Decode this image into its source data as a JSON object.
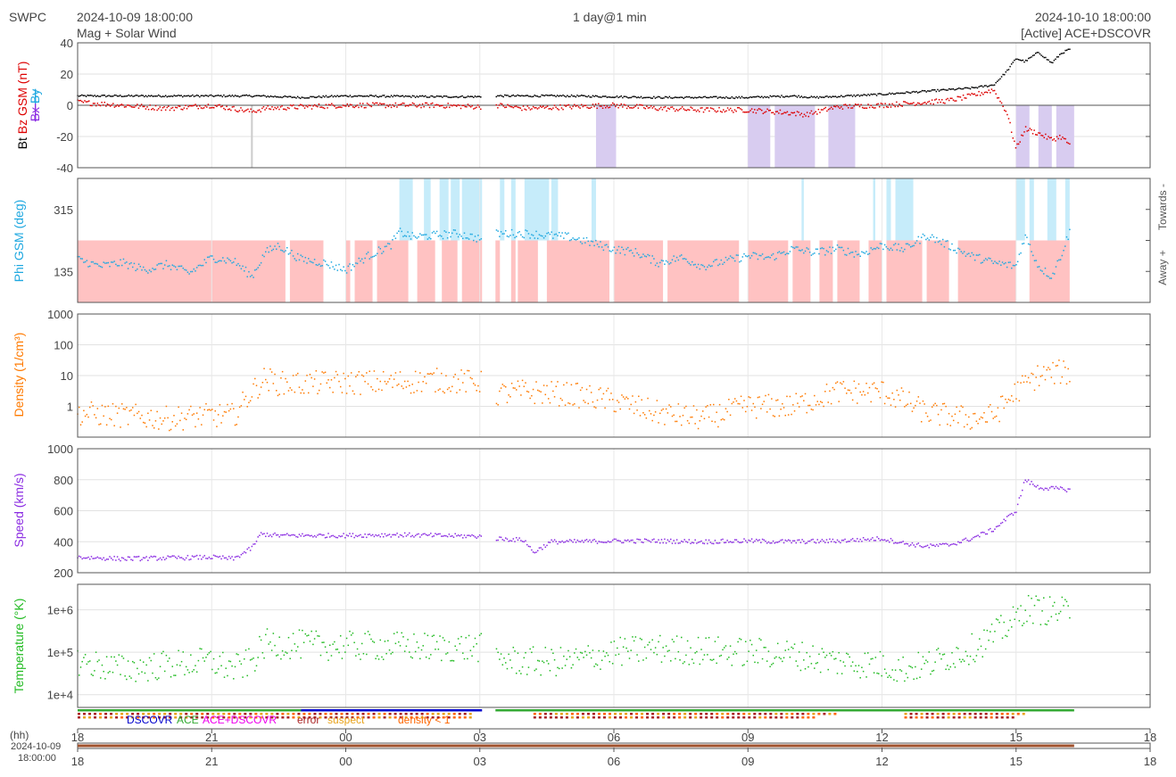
{
  "header": {
    "brand": "SWPC",
    "start_time": "2024-10-09 18:00:00",
    "subtitle": "Mag + Solar Wind",
    "span": "1 day@1 min",
    "end_time": "2024-10-10 18:00:00",
    "source": "[Active] ACE+DSCOVR"
  },
  "colors": {
    "bt": "#000000",
    "bz": "#dd0000",
    "by": "#1fa8e0",
    "bx": "#8a2be2",
    "phi": "#1fa8e0",
    "density": "#ff7a00",
    "speed": "#8a2be2",
    "temperature": "#22bb22",
    "away_fill": "#ffc2c2",
    "towards_fill": "#c6ecfa",
    "bz_south_fill": "#d8ccf0",
    "dscovr": "#0000cc",
    "ace": "#33aa33",
    "ace_dscovr": "#ee00ee",
    "error": "#aa2222",
    "suspect": "#e8a21a",
    "density_lt1": "#ff6600"
  },
  "legend": {
    "dscovr": "DSCOVR",
    "ace": "ACE",
    "ace_dscovr": "ACE+DSCOVR",
    "error": "error",
    "suspect": "suspect",
    "density_lt1": "density < 1"
  },
  "timeline": {
    "hh_label": "(hh)",
    "date_label": "2024-10-09",
    "time_label": "18:00:00"
  },
  "chart_data": [
    {
      "type": "scatter",
      "name": "mag",
      "ylabel_parts": [
        "Bt",
        "Bz GSM (nT)",
        "Bx",
        "By"
      ],
      "ylim": [
        -40,
        40
      ],
      "yticks": [
        40,
        20,
        0,
        -20,
        -40
      ],
      "x_ticks": [
        "18",
        "21",
        "00",
        "03",
        "06",
        "09",
        "12",
        "15",
        "18"
      ],
      "x_range_hours": [
        0,
        24
      ],
      "gap_hours": [
        9.05,
        9.35
      ],
      "series": [
        {
          "name": "Bt",
          "x": [
            0,
            2,
            4,
            5,
            6,
            8,
            9,
            9.4,
            11,
            13,
            15,
            16,
            16.5,
            18,
            18.5,
            19,
            19.5,
            20,
            20.5,
            20.8,
            21,
            21.2,
            21.5,
            21.8,
            22,
            22.2
          ],
          "y": [
            6,
            6,
            6,
            5,
            6,
            5.5,
            5.5,
            6,
            6,
            5,
            5,
            6,
            5,
            7,
            8,
            9,
            10,
            11,
            13,
            22,
            30,
            28,
            34,
            27,
            33,
            36
          ]
        },
        {
          "name": "Bz",
          "x": [
            0,
            1,
            2,
            3,
            3.9,
            4.2,
            5,
            6,
            8,
            9,
            9.4,
            10,
            11,
            12,
            13,
            14,
            15,
            16,
            16.3,
            17,
            18,
            19,
            19.5,
            20,
            20.5,
            20.8,
            21,
            21.2,
            21.5,
            21.8,
            22,
            22.2
          ],
          "y": [
            2,
            0,
            -2,
            0,
            -4,
            -2,
            -1,
            0,
            0,
            -1,
            0,
            -2,
            -1,
            0,
            -2,
            -3,
            -3,
            -5,
            -6,
            -1,
            0,
            2,
            3,
            6,
            10,
            -5,
            -28,
            -15,
            -18,
            -22,
            -20,
            -25
          ]
        }
      ]
    },
    {
      "type": "scatter",
      "name": "phi",
      "ylabel": "Phi GSM (deg)",
      "ylim": [
        45,
        405
      ],
      "yticks": [
        315,
        135
      ],
      "side_labels": [
        "Away +",
        "Towards -"
      ],
      "series": [
        {
          "name": "Phi",
          "x": [
            0,
            0.5,
            1,
            1.5,
            2,
            2.5,
            3,
            3.5,
            3.9,
            4.2,
            4.5,
            5,
            5.5,
            6,
            6.5,
            7,
            7.2,
            7.5,
            8,
            8.5,
            9,
            9.4,
            10,
            10.5,
            11,
            12,
            12.5,
            13,
            13.5,
            14,
            14.5,
            15,
            15.5,
            16,
            16.5,
            17,
            17.5,
            18,
            18.5,
            19,
            19.5,
            20,
            20.5,
            21,
            21.2,
            21.5,
            21.8,
            22,
            22.2
          ],
          "y": [
            170,
            150,
            160,
            140,
            155,
            130,
            175,
            165,
            120,
            190,
            210,
            170,
            160,
            140,
            180,
            210,
            250,
            235,
            240,
            245,
            230,
            245,
            245,
            240,
            235,
            200,
            190,
            160,
            175,
            150,
            165,
            180,
            175,
            200,
            190,
            200,
            185,
            210,
            200,
            240,
            210,
            180,
            160,
            150,
            240,
            150,
            120,
            180,
            250
          ]
        }
      ]
    },
    {
      "type": "scatter",
      "name": "density",
      "ylabel": "Density (1/cm³)",
      "ylim": [
        0.1,
        1000
      ],
      "scale": "log",
      "yticks": [
        1000,
        100,
        10,
        1
      ],
      "series": [
        {
          "name": "Density",
          "x": [
            0,
            1,
            2,
            3,
            3.5,
            3.9,
            4.2,
            4.5,
            5,
            6,
            7,
            8,
            9,
            9.4,
            10,
            11,
            12,
            13,
            14,
            15,
            16,
            17,
            18,
            18.5,
            19,
            19.5,
            20,
            20.5,
            21,
            21.2,
            21.5,
            22,
            22.2
          ],
          "y": [
            0.6,
            0.5,
            0.4,
            0.5,
            0.5,
            3,
            8,
            5.5,
            5.5,
            6,
            6,
            7,
            6,
            2.5,
            3,
            2.5,
            1.5,
            0.6,
            0.4,
            1,
            1,
            3,
            3,
            1.5,
            0.6,
            0.5,
            0.4,
            0.5,
            3,
            5,
            10,
            13,
            12
          ]
        }
      ]
    },
    {
      "type": "scatter",
      "name": "speed",
      "ylabel": "Speed (km/s)",
      "ylim": [
        200,
        1000
      ],
      "yticks": [
        1000,
        800,
        600,
        400,
        200
      ],
      "series": [
        {
          "name": "Speed",
          "x": [
            0,
            1,
            2,
            3,
            3.5,
            3.9,
            4.1,
            4.5,
            5,
            6,
            7,
            8,
            9,
            9.4,
            10,
            10.2,
            10.6,
            11,
            12,
            13,
            14,
            15,
            16,
            17,
            18,
            18.5,
            19,
            19.5,
            20,
            20.5,
            21,
            21.2,
            21.5,
            22,
            22.2
          ],
          "y": [
            300,
            290,
            295,
            300,
            290,
            360,
            450,
            440,
            440,
            440,
            445,
            440,
            435,
            420,
            410,
            330,
            400,
            400,
            405,
            405,
            400,
            405,
            400,
            405,
            420,
            390,
            370,
            380,
            420,
            480,
            600,
            800,
            750,
            740,
            735
          ]
        }
      ]
    },
    {
      "type": "scatter",
      "name": "temperature",
      "ylabel": "Temperature (°K)",
      "ylim": [
        5000,
        4000000
      ],
      "scale": "log",
      "yticks": [
        "1e+6",
        "1e+5",
        "1e+4"
      ],
      "series": [
        {
          "name": "Temperature",
          "x": [
            0,
            1,
            2,
            3,
            3.5,
            3.9,
            4.2,
            5,
            6,
            7,
            8,
            9,
            9.4,
            10,
            11,
            12,
            13,
            14,
            15,
            16,
            17,
            18,
            18.5,
            19,
            19.5,
            20,
            20.5,
            21,
            21.2,
            21.5,
            22,
            22.2
          ],
          "y": [
            60000,
            40000,
            50000,
            60000,
            40000,
            60000,
            160000,
            150000,
            140000,
            140000,
            130000,
            130000,
            70000,
            60000,
            60000,
            100000,
            120000,
            110000,
            100000,
            90000,
            60000,
            50000,
            40000,
            50000,
            80000,
            120000,
            250000,
            600000,
            1100000,
            1000000,
            900000,
            900000
          ]
        }
      ]
    }
  ]
}
